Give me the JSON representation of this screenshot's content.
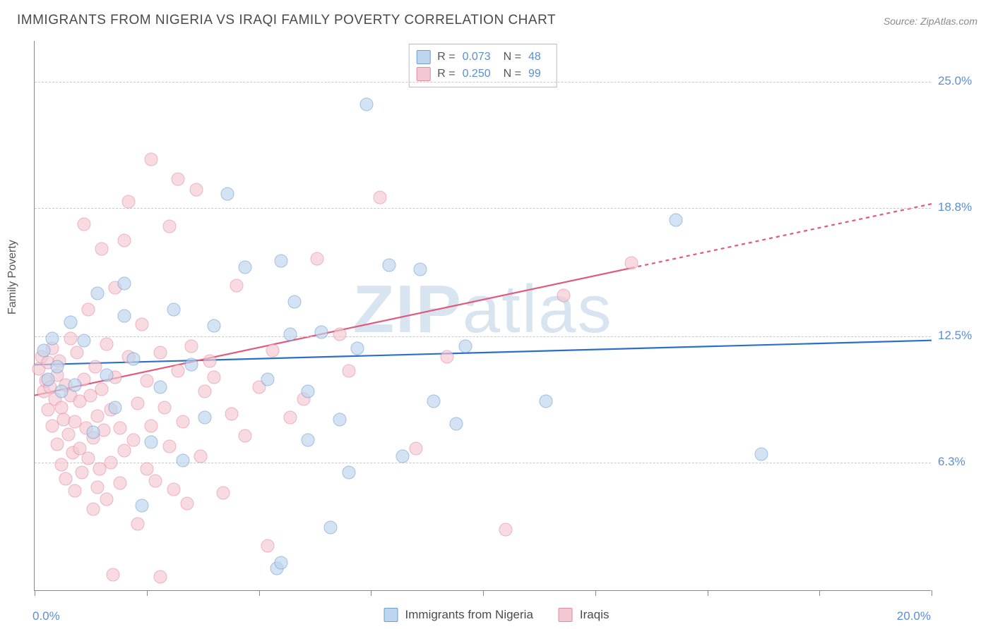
{
  "title": "IMMIGRANTS FROM NIGERIA VS IRAQI FAMILY POVERTY CORRELATION CHART",
  "source_prefix": "Source: ",
  "source_name": "ZipAtlas.com",
  "watermark_bold": "ZIP",
  "watermark_rest": "atlas",
  "chart": {
    "type": "scatter",
    "ylabel": "Family Poverty",
    "xlim": [
      0,
      20
    ],
    "ylim": [
      0,
      27
    ],
    "x_axis_labels": {
      "min": "0.0%",
      "max": "20.0%"
    },
    "y_grid": [
      {
        "val": 6.3,
        "label": "6.3%"
      },
      {
        "val": 12.5,
        "label": "12.5%"
      },
      {
        "val": 18.8,
        "label": "18.8%"
      },
      {
        "val": 25.0,
        "label": "25.0%"
      }
    ],
    "x_ticks": [
      0,
      2.5,
      5,
      7.5,
      10,
      12.5,
      15,
      17.5,
      20
    ],
    "background_color": "#ffffff",
    "grid_color": "#c8c8c8",
    "series": [
      {
        "name": "Immigrants from Nigeria",
        "fill": "#bdd5ee",
        "stroke": "#6d9dd1",
        "trend_color": "#2c6fc9",
        "trend_width": 2.2,
        "R": "0.073",
        "N": "48",
        "trend": {
          "y_at_x0": 11.1,
          "y_at_x20": 12.3,
          "solid_until_x": 20
        },
        "points": [
          [
            0.2,
            11.8
          ],
          [
            0.3,
            10.4
          ],
          [
            0.4,
            12.4
          ],
          [
            0.5,
            11.0
          ],
          [
            0.6,
            9.8
          ],
          [
            0.8,
            13.2
          ],
          [
            0.9,
            10.1
          ],
          [
            1.1,
            12.3
          ],
          [
            1.3,
            7.8
          ],
          [
            1.4,
            14.6
          ],
          [
            1.6,
            10.6
          ],
          [
            1.8,
            9.0
          ],
          [
            2.0,
            15.1
          ],
          [
            2.0,
            13.5
          ],
          [
            2.2,
            11.4
          ],
          [
            2.4,
            4.2
          ],
          [
            2.6,
            7.3
          ],
          [
            2.8,
            10.0
          ],
          [
            3.1,
            13.8
          ],
          [
            3.3,
            6.4
          ],
          [
            3.5,
            11.1
          ],
          [
            3.8,
            8.5
          ],
          [
            4.0,
            13.0
          ],
          [
            4.3,
            19.5
          ],
          [
            4.7,
            15.9
          ],
          [
            5.2,
            10.4
          ],
          [
            5.4,
            1.1
          ],
          [
            5.5,
            16.2
          ],
          [
            5.5,
            1.4
          ],
          [
            5.7,
            12.6
          ],
          [
            5.8,
            14.2
          ],
          [
            6.1,
            9.8
          ],
          [
            6.1,
            7.4
          ],
          [
            6.4,
            12.7
          ],
          [
            6.6,
            3.1
          ],
          [
            6.8,
            8.4
          ],
          [
            7.0,
            5.8
          ],
          [
            7.2,
            11.9
          ],
          [
            7.4,
            23.9
          ],
          [
            7.9,
            16.0
          ],
          [
            8.2,
            6.6
          ],
          [
            8.6,
            15.8
          ],
          [
            8.9,
            9.3
          ],
          [
            9.4,
            8.2
          ],
          [
            9.6,
            12.0
          ],
          [
            11.4,
            9.3
          ],
          [
            14.3,
            18.2
          ],
          [
            16.2,
            6.7
          ]
        ]
      },
      {
        "name": "Iraqis",
        "fill": "#f3c8d2",
        "stroke": "#e48aa0",
        "trend_color": "#e05a7d",
        "trend_width": 2.2,
        "R": "0.250",
        "N": "99",
        "trend": {
          "y_at_x0": 9.6,
          "y_at_x20": 19.0,
          "solid_until_x": 13.3
        },
        "points": [
          [
            0.1,
            10.9
          ],
          [
            0.15,
            11.5
          ],
          [
            0.2,
            9.8
          ],
          [
            0.25,
            10.3
          ],
          [
            0.3,
            11.2
          ],
          [
            0.3,
            8.9
          ],
          [
            0.35,
            10.0
          ],
          [
            0.4,
            11.9
          ],
          [
            0.4,
            8.1
          ],
          [
            0.45,
            9.4
          ],
          [
            0.5,
            10.6
          ],
          [
            0.5,
            7.2
          ],
          [
            0.55,
            11.3
          ],
          [
            0.6,
            9.0
          ],
          [
            0.6,
            6.2
          ],
          [
            0.65,
            8.4
          ],
          [
            0.7,
            10.1
          ],
          [
            0.7,
            5.5
          ],
          [
            0.75,
            7.7
          ],
          [
            0.8,
            9.6
          ],
          [
            0.8,
            12.4
          ],
          [
            0.85,
            6.8
          ],
          [
            0.9,
            8.3
          ],
          [
            0.9,
            4.9
          ],
          [
            0.95,
            11.7
          ],
          [
            1.0,
            7.0
          ],
          [
            1.0,
            9.3
          ],
          [
            1.05,
            5.8
          ],
          [
            1.1,
            10.4
          ],
          [
            1.1,
            18.0
          ],
          [
            1.15,
            8.0
          ],
          [
            1.2,
            6.5
          ],
          [
            1.2,
            13.8
          ],
          [
            1.25,
            9.6
          ],
          [
            1.3,
            7.5
          ],
          [
            1.3,
            4.0
          ],
          [
            1.35,
            11.0
          ],
          [
            1.4,
            8.6
          ],
          [
            1.4,
            5.1
          ],
          [
            1.45,
            6.0
          ],
          [
            1.5,
            9.9
          ],
          [
            1.5,
            16.8
          ],
          [
            1.55,
            7.9
          ],
          [
            1.6,
            4.5
          ],
          [
            1.6,
            12.1
          ],
          [
            1.7,
            6.3
          ],
          [
            1.7,
            8.9
          ],
          [
            1.75,
            0.8
          ],
          [
            1.8,
            10.5
          ],
          [
            1.8,
            14.9
          ],
          [
            1.9,
            5.3
          ],
          [
            1.9,
            8.0
          ],
          [
            2.0,
            17.2
          ],
          [
            2.0,
            6.9
          ],
          [
            2.1,
            11.5
          ],
          [
            2.1,
            19.1
          ],
          [
            2.2,
            7.4
          ],
          [
            2.3,
            9.2
          ],
          [
            2.3,
            3.3
          ],
          [
            2.4,
            13.1
          ],
          [
            2.5,
            6.0
          ],
          [
            2.5,
            10.3
          ],
          [
            2.6,
            21.2
          ],
          [
            2.6,
            8.1
          ],
          [
            2.7,
            5.4
          ],
          [
            2.8,
            11.7
          ],
          [
            2.8,
            0.7
          ],
          [
            2.9,
            9.0
          ],
          [
            3.0,
            7.1
          ],
          [
            3.0,
            17.9
          ],
          [
            3.1,
            5.0
          ],
          [
            3.2,
            10.8
          ],
          [
            3.2,
            20.2
          ],
          [
            3.3,
            8.3
          ],
          [
            3.4,
            4.3
          ],
          [
            3.5,
            12.0
          ],
          [
            3.6,
            19.7
          ],
          [
            3.7,
            6.6
          ],
          [
            3.8,
            9.8
          ],
          [
            3.9,
            11.3
          ],
          [
            4.0,
            10.5
          ],
          [
            4.2,
            4.8
          ],
          [
            4.4,
            8.7
          ],
          [
            4.5,
            15.0
          ],
          [
            4.7,
            7.6
          ],
          [
            5.0,
            10.0
          ],
          [
            5.2,
            2.2
          ],
          [
            5.3,
            11.8
          ],
          [
            5.7,
            8.5
          ],
          [
            6.0,
            9.4
          ],
          [
            6.3,
            16.3
          ],
          [
            6.8,
            12.6
          ],
          [
            7.0,
            10.8
          ],
          [
            7.7,
            19.3
          ],
          [
            8.5,
            7.0
          ],
          [
            9.2,
            11.5
          ],
          [
            10.5,
            3.0
          ],
          [
            11.8,
            14.5
          ],
          [
            13.3,
            16.1
          ]
        ]
      }
    ]
  },
  "legend_top": {
    "r_label": "R =",
    "n_label": "N ="
  },
  "legend_bottom_labels": [
    "Immigrants from Nigeria",
    "Iraqis"
  ]
}
